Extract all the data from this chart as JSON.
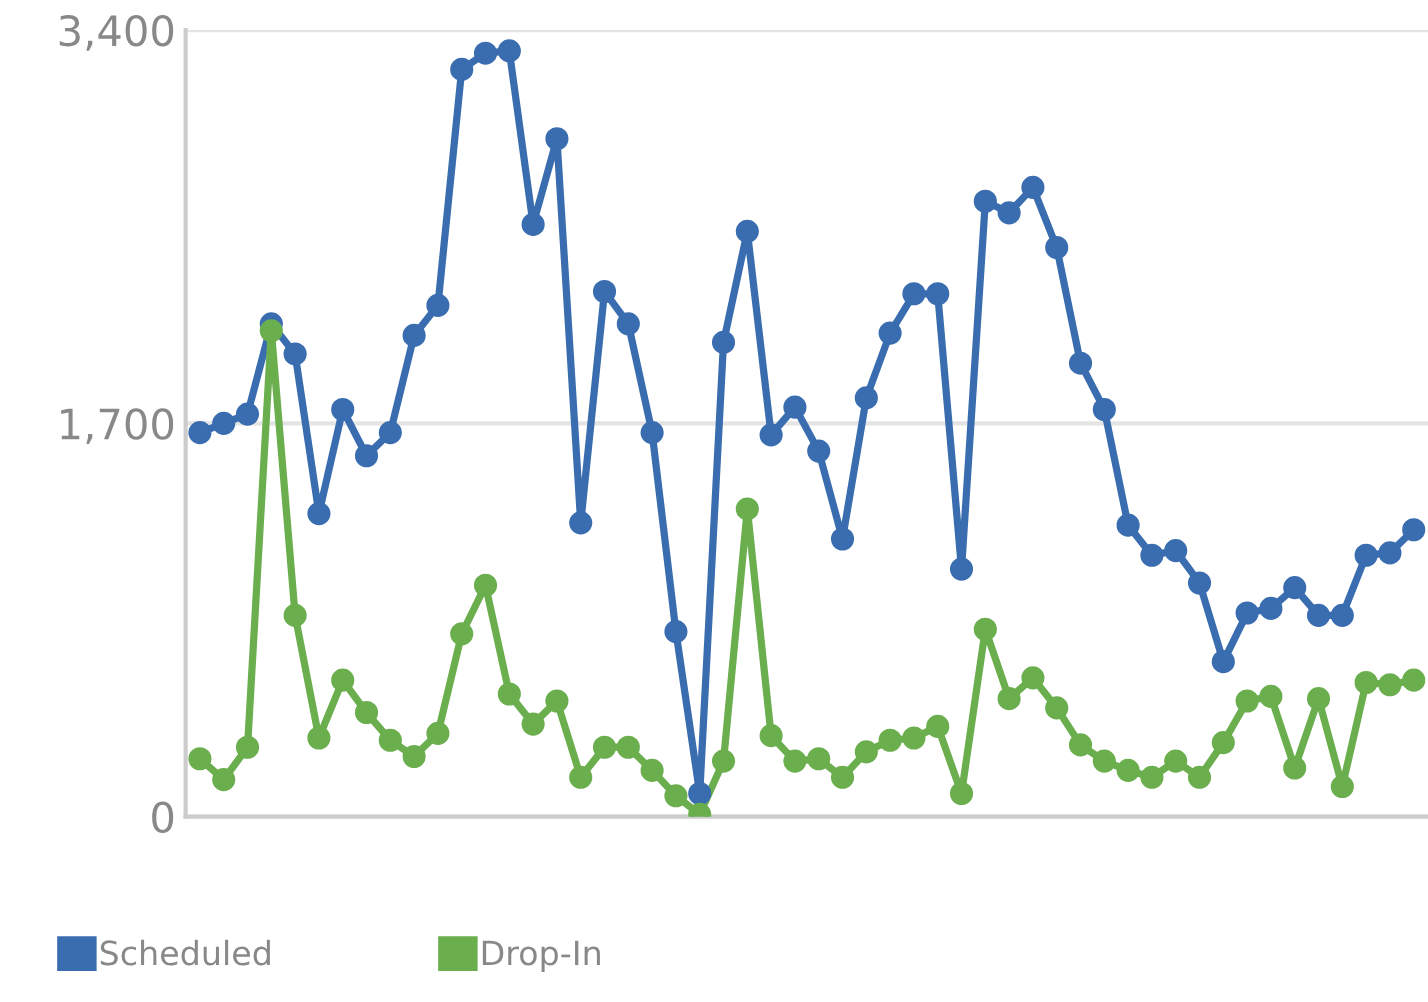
{
  "chart_data": {
    "type": "line",
    "categories": [
      null,
      null,
      null,
      null,
      null,
      null,
      null,
      null,
      null,
      null,
      null,
      null,
      null,
      null,
      null,
      null,
      null,
      null,
      null,
      null,
      null,
      null,
      null,
      null,
      null,
      null,
      null,
      null,
      null,
      null,
      null,
      null,
      null,
      null,
      null,
      null,
      null,
      null,
      null,
      null,
      null,
      null,
      null,
      null,
      null,
      null,
      null,
      null,
      null,
      null,
      null,
      null
    ],
    "series": [
      {
        "name": "Scheduled",
        "color": "#3a6db0",
        "values": [
          1660,
          1700,
          1740,
          2130,
          2000,
          1310,
          1760,
          1560,
          1660,
          2080,
          2210,
          3230,
          3300,
          3310,
          2560,
          2930,
          1270,
          2270,
          2130,
          1660,
          800,
          100,
          2050,
          2530,
          1650,
          1770,
          1580,
          1200,
          1810,
          2090,
          2260,
          2260,
          1070,
          2660,
          2610,
          2720,
          2460,
          1960,
          1760,
          1260,
          1130,
          1150,
          1010,
          670,
          880,
          900,
          990,
          870,
          870,
          1130,
          1140,
          1240
        ]
      },
      {
        "name": "Drop-In",
        "color": "#6aae4e",
        "values": [
          250,
          160,
          300,
          2100,
          870,
          340,
          590,
          450,
          330,
          260,
          360,
          790,
          1000,
          530,
          400,
          500,
          170,
          300,
          300,
          200,
          90,
          10,
          240,
          1330,
          350,
          240,
          250,
          170,
          280,
          330,
          340,
          390,
          100,
          810,
          510,
          600,
          470,
          310,
          240,
          200,
          170,
          240,
          170,
          320,
          500,
          520,
          210,
          510,
          130,
          580,
          570,
          590
        ]
      }
    ],
    "ylim": [
      0,
      3400
    ],
    "yticks": [
      0,
      {
        "value": 1700,
        "label": "1,700"
      },
      {
        "value": 3400,
        "label": "3,400"
      }
    ],
    "grid": "y",
    "legend": "bottom left",
    "marker": "circle",
    "line_style": "solid",
    "tick_labels": "y"
  }
}
